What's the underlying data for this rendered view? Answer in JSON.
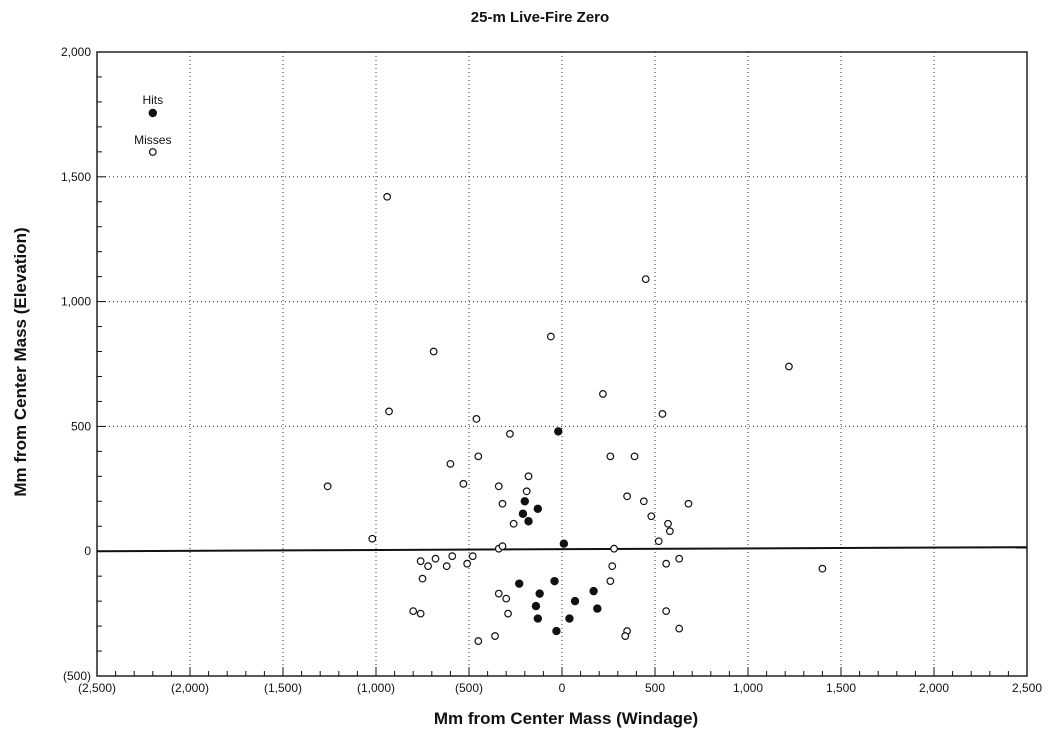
{
  "chart_data": {
    "type": "scatter",
    "title": "25-m Live-Fire Zero",
    "xlabel": "Mm from Center Mass (Windage)",
    "ylabel": "Mm from Center Mass (Elevation)",
    "xlim": [
      -2500,
      2500
    ],
    "ylim": [
      -500,
      2000
    ],
    "x_ticks": [
      -2500,
      -2000,
      -1500,
      -1000,
      -500,
      0,
      500,
      1000,
      1500,
      2000,
      2500
    ],
    "x_tick_labels": [
      "(2,500)",
      "(2,000)",
      "(1,500)",
      "(1,000)",
      "(500)",
      "0",
      "500",
      "1,000",
      "1,500",
      "2,000",
      "2,500"
    ],
    "y_ticks": [
      -500,
      0,
      500,
      1000,
      1500,
      2000
    ],
    "y_tick_labels": [
      "(500)",
      "0",
      "500",
      "1,000",
      "1,500",
      "2,000"
    ],
    "grid": true,
    "legend_position": "top-left",
    "zero_line": true,
    "series": [
      {
        "name": "Hits",
        "marker": "filled-circle",
        "points": [
          [
            -200,
            200
          ],
          [
            -180,
            120
          ],
          [
            -210,
            150
          ],
          [
            -130,
            170
          ],
          [
            -20,
            480
          ],
          [
            10,
            30
          ],
          [
            -230,
            -130
          ],
          [
            -120,
            -170
          ],
          [
            -40,
            -120
          ],
          [
            -140,
            -220
          ],
          [
            -130,
            -270
          ],
          [
            70,
            -200
          ],
          [
            170,
            -160
          ],
          [
            190,
            -230
          ],
          [
            40,
            -270
          ],
          [
            -30,
            -320
          ]
        ]
      },
      {
        "name": "Misses",
        "marker": "open-circle",
        "points": [
          [
            -940,
            1420
          ],
          [
            450,
            1090
          ],
          [
            -690,
            800
          ],
          [
            1220,
            740
          ],
          [
            -60,
            860
          ],
          [
            -930,
            560
          ],
          [
            220,
            630
          ],
          [
            540,
            550
          ],
          [
            -460,
            530
          ],
          [
            -280,
            470
          ],
          [
            -450,
            380
          ],
          [
            260,
            380
          ],
          [
            390,
            380
          ],
          [
            -600,
            350
          ],
          [
            -1260,
            260
          ],
          [
            -530,
            270
          ],
          [
            -180,
            300
          ],
          [
            -190,
            240
          ],
          [
            -340,
            260
          ],
          [
            -320,
            190
          ],
          [
            -260,
            110
          ],
          [
            350,
            220
          ],
          [
            440,
            200
          ],
          [
            680,
            190
          ],
          [
            480,
            140
          ],
          [
            570,
            110
          ],
          [
            580,
            80
          ],
          [
            -1020,
            50
          ],
          [
            520,
            40
          ],
          [
            -340,
            10
          ],
          [
            -320,
            20
          ],
          [
            280,
            10
          ],
          [
            -760,
            -40
          ],
          [
            -720,
            -60
          ],
          [
            -680,
            -30
          ],
          [
            -620,
            -60
          ],
          [
            -590,
            -20
          ],
          [
            -510,
            -50
          ],
          [
            -480,
            -20
          ],
          [
            -750,
            -110
          ],
          [
            1400,
            -70
          ],
          [
            560,
            -50
          ],
          [
            630,
            -30
          ],
          [
            -340,
            -170
          ],
          [
            -300,
            -190
          ],
          [
            -290,
            -250
          ],
          [
            260,
            -120
          ],
          [
            270,
            -60
          ],
          [
            -800,
            -240
          ],
          [
            -760,
            -250
          ],
          [
            -450,
            -360
          ],
          [
            -360,
            -340
          ],
          [
            350,
            -320
          ],
          [
            340,
            -340
          ],
          [
            560,
            -240
          ],
          [
            630,
            -310
          ]
        ]
      }
    ]
  }
}
